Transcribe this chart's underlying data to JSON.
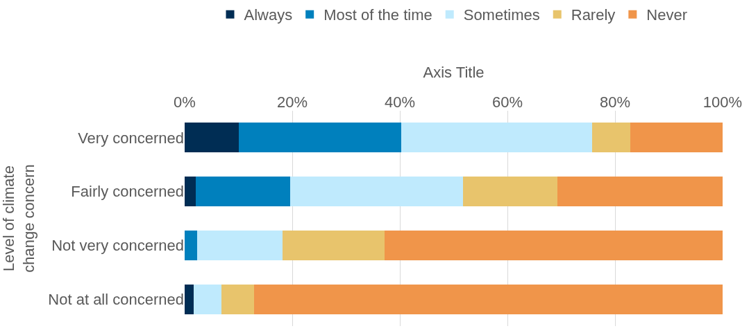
{
  "chart_data": {
    "type": "bar",
    "orientation": "horizontal",
    "stacked": true,
    "xlabel": "Axis Title",
    "ylabel": "Level of climate\nchange concern",
    "categories": [
      "Very concerned",
      "Fairly concerned",
      "Not very concerned",
      "Not at all concerned"
    ],
    "series": [
      {
        "name": "Always",
        "color": "#002d54",
        "values": [
          10.1,
          2.1,
          0,
          1.7
        ]
      },
      {
        "name": "Most of the time",
        "color": "#0080bd",
        "values": [
          30.1,
          17.5,
          2.3,
          0
        ]
      },
      {
        "name": "Sometimes",
        "color": "#bfeafd",
        "values": [
          35.5,
          32.1,
          15.9,
          5.2
        ]
      },
      {
        "name": "Rarely",
        "color": "#e8c46c",
        "values": [
          7.2,
          17.6,
          18.9,
          6.0
        ]
      },
      {
        "name": "Never",
        "color": "#f0954a",
        "values": [
          17.1,
          30.7,
          62.9,
          87.1
        ]
      }
    ],
    "xlim": [
      0,
      100
    ],
    "xticks": [
      {
        "value": 0,
        "label": "0%"
      },
      {
        "value": 20,
        "label": "20%"
      },
      {
        "value": 40,
        "label": "40%"
      },
      {
        "value": 60,
        "label": "60%"
      },
      {
        "value": 80,
        "label": "80%"
      },
      {
        "value": 100,
        "label": "100%"
      }
    ],
    "grid": "x",
    "legend": "top"
  }
}
